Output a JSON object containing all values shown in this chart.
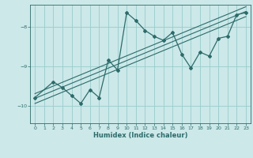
{
  "xlabel": "Humidex (Indice chaleur)",
  "bg_color": "#cce8e8",
  "grid_color": "#99cccc",
  "line_color": "#2d6b6b",
  "xlim": [
    -0.5,
    23.5
  ],
  "ylim": [
    -10.45,
    -7.45
  ],
  "yticks": [
    -10,
    -9,
    -8
  ],
  "xticks": [
    0,
    1,
    2,
    3,
    4,
    5,
    6,
    7,
    8,
    9,
    10,
    11,
    12,
    13,
    14,
    15,
    16,
    17,
    18,
    19,
    20,
    21,
    22,
    23
  ],
  "series1_x": [
    0,
    2,
    3,
    4,
    5,
    6,
    7,
    8,
    9,
    10,
    11,
    12,
    13,
    14,
    15,
    16,
    17,
    18,
    19,
    20,
    21,
    22,
    23
  ],
  "series1_y": [
    -9.8,
    -9.4,
    -9.55,
    -9.75,
    -9.95,
    -9.6,
    -9.8,
    -8.85,
    -9.1,
    -7.65,
    -7.85,
    -8.1,
    -8.25,
    -8.35,
    -8.15,
    -8.7,
    -9.05,
    -8.65,
    -8.75,
    -8.3,
    -8.25,
    -7.7,
    -7.65
  ],
  "regression_lines": [
    {
      "x": [
        0,
        23
      ],
      "y": [
        -9.95,
        -7.75
      ]
    },
    {
      "x": [
        0,
        23
      ],
      "y": [
        -9.82,
        -7.62
      ]
    },
    {
      "x": [
        0,
        23
      ],
      "y": [
        -9.7,
        -7.5
      ]
    }
  ]
}
